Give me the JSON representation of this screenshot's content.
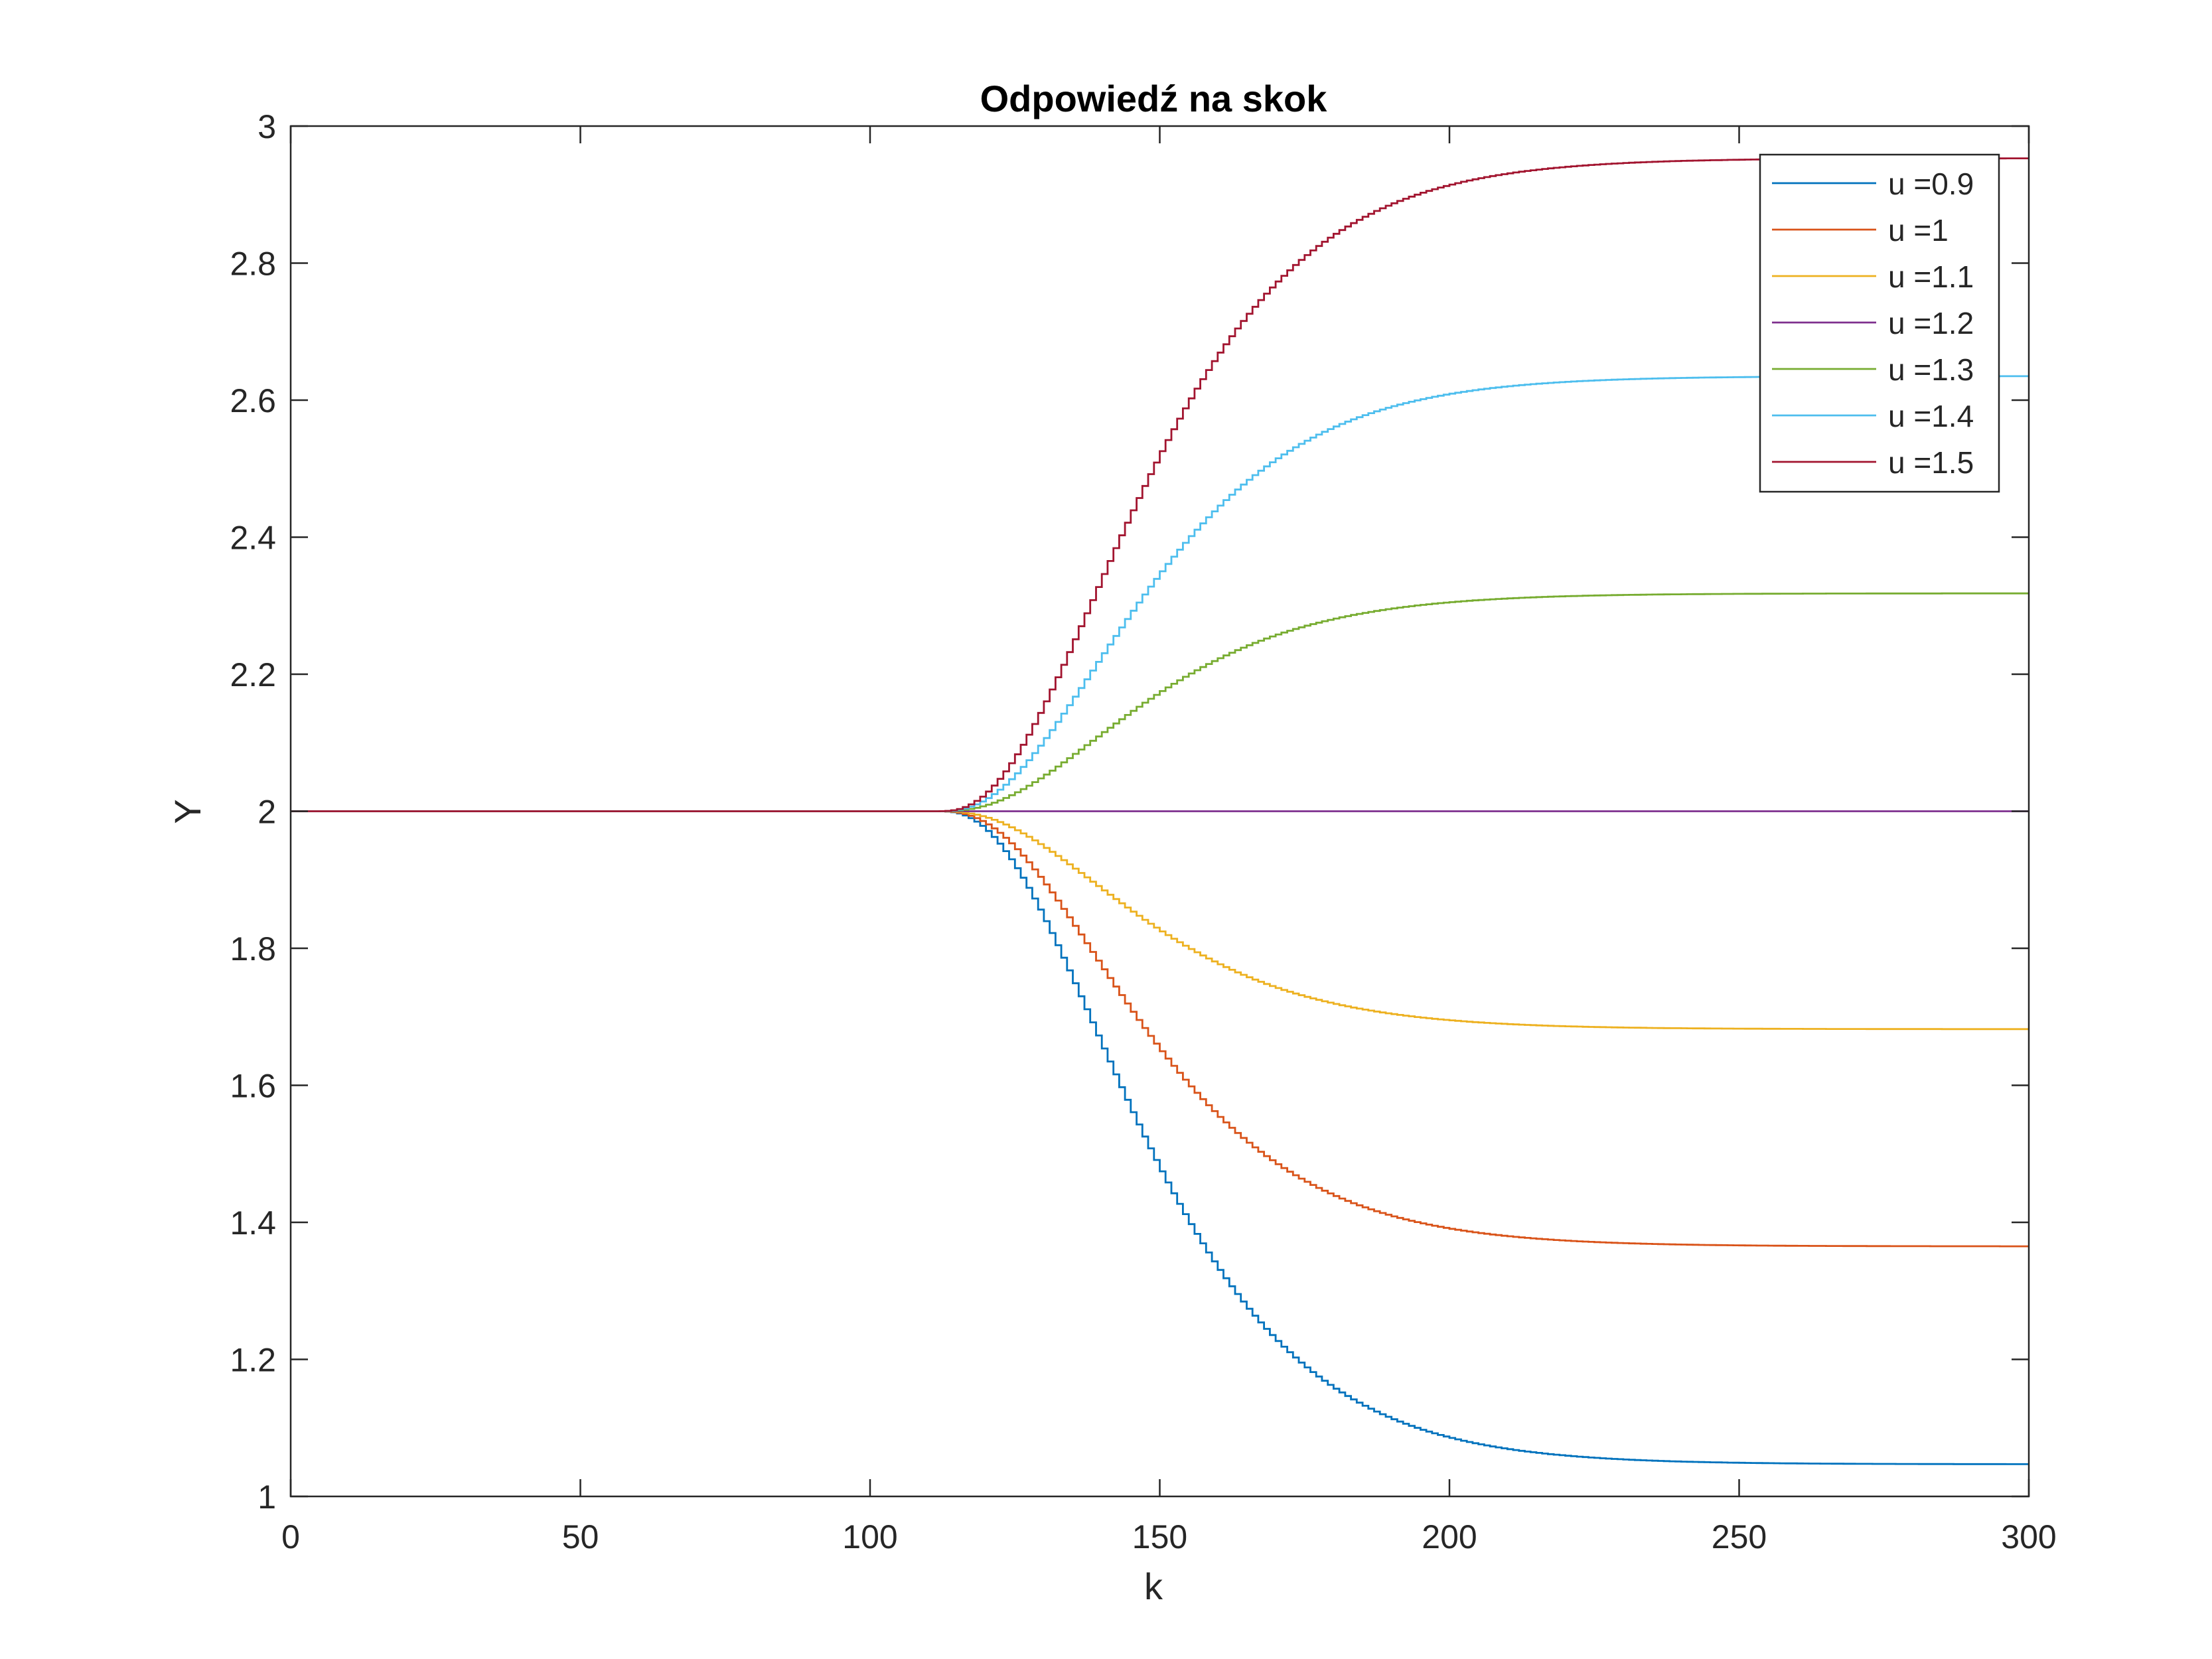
{
  "chart_data": {
    "type": "line",
    "title": "Odpowiedź na skok",
    "xlabel": "k",
    "ylabel": "Y",
    "xlim": [
      0,
      300
    ],
    "ylim": [
      1,
      3
    ],
    "xticks": [
      0,
      50,
      100,
      150,
      200,
      250,
      300
    ],
    "xtick_labels": [
      "0",
      "50",
      "100",
      "150",
      "200",
      "250",
      "300"
    ],
    "yticks": [
      1,
      1.2,
      1.4,
      1.6,
      1.8,
      2,
      2.2,
      2.4,
      2.6,
      2.8,
      3
    ],
    "ytick_labels": [
      "1",
      "1.2",
      "1.4",
      "1.6",
      "1.8",
      "2",
      "2.2",
      "2.4",
      "2.6",
      "2.8",
      "3"
    ],
    "grid": false,
    "legend_position": "top-right",
    "step_start_k": 111,
    "series": [
      {
        "name": "u =0.9",
        "color": "#0072BD",
        "initial": 2,
        "final": 1.047
      },
      {
        "name": "u =1",
        "color": "#D95319",
        "initial": 2,
        "final": 1.365
      },
      {
        "name": "u =1.1",
        "color": "#EDB120",
        "initial": 2,
        "final": 1.682
      },
      {
        "name": "u =1.2",
        "color": "#7E2F8E",
        "initial": 2,
        "final": 2.0
      },
      {
        "name": "u =1.3",
        "color": "#77AC30",
        "initial": 2,
        "final": 2.318
      },
      {
        "name": "u =1.4",
        "color": "#4DBEEE",
        "initial": 2,
        "final": 2.635
      },
      {
        "name": "u =1.5",
        "color": "#A2142F",
        "initial": 2,
        "final": 2.953
      }
    ]
  }
}
